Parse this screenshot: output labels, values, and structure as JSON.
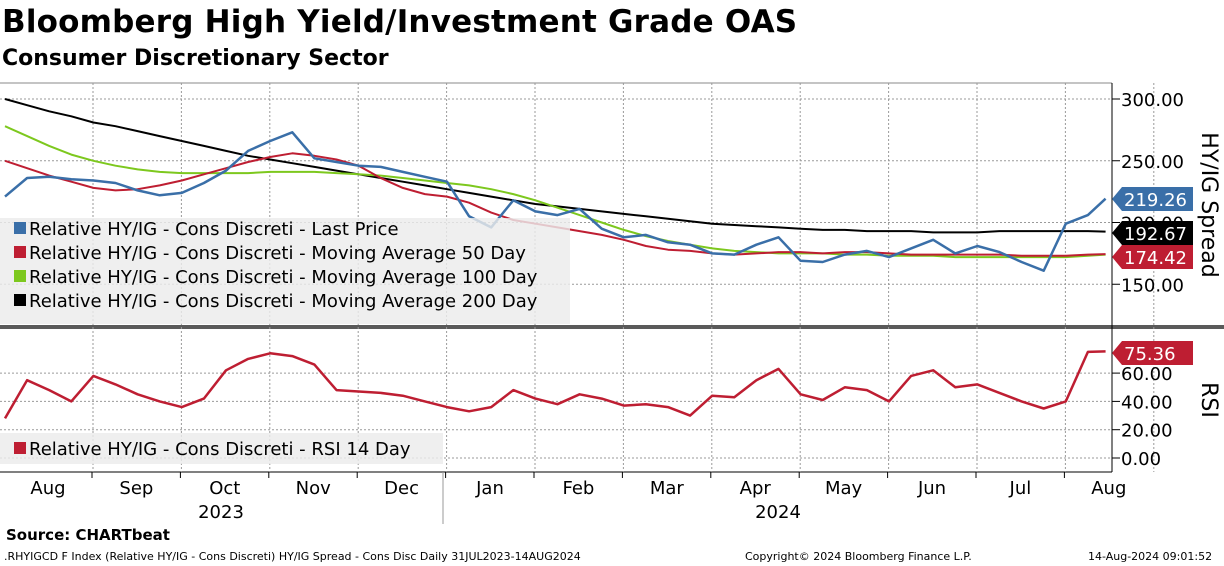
{
  "title": "Bloomberg High Yield/Investment Grade OAS",
  "subtitle": "Consumer Discretionary Sector",
  "colors": {
    "last_price": "#3a6fa8",
    "ma50": "#be1e32",
    "ma100": "#7dc81e",
    "ma200": "#000000",
    "rsi": "#be1e32",
    "divider": "#5a5a5a"
  },
  "chart_data": [
    {
      "type": "line",
      "panel": "price",
      "ylabel": "HY/IG Spread",
      "ylim": [
        120,
        315
      ],
      "yticks": [
        150,
        200,
        250,
        300
      ],
      "ytick_labels": [
        "150.00",
        "200.00",
        "250.00",
        "300.00"
      ],
      "x_months": [
        "Aug",
        "Sep",
        "Oct",
        "Nov",
        "Dec",
        "Jan",
        "Feb",
        "Mar",
        "Apr",
        "May",
        "Jun",
        "Jul",
        "Aug"
      ],
      "x_years": [
        "2023",
        "2024"
      ],
      "x": [
        0,
        0.25,
        0.5,
        0.75,
        1,
        1.25,
        1.5,
        1.75,
        2,
        2.25,
        2.5,
        2.75,
        3,
        3.25,
        3.5,
        3.75,
        4,
        4.25,
        4.5,
        4.75,
        5,
        5.25,
        5.5,
        5.75,
        6,
        6.25,
        6.5,
        6.75,
        7,
        7.25,
        7.5,
        7.75,
        8,
        8.25,
        8.5,
        8.75,
        9,
        9.25,
        9.5,
        9.75,
        10,
        10.25,
        10.5,
        10.75,
        11,
        11.25,
        11.5,
        11.75,
        12,
        12.25,
        12.45
      ],
      "series": [
        {
          "name": "Relative HY/IG - Cons Discreti - Last Price",
          "values": [
            221,
            236,
            237,
            235,
            234,
            232,
            226,
            222,
            224,
            232,
            242,
            258,
            266,
            273,
            252,
            249,
            246,
            245,
            241,
            237,
            233,
            205,
            196,
            218,
            209,
            206,
            211,
            195,
            188,
            190,
            184,
            182,
            175,
            174,
            182,
            188,
            169,
            168,
            174,
            177,
            172,
            179,
            186,
            175,
            181,
            176,
            168,
            161,
            199,
            206,
            219.26
          ]
        },
        {
          "name": "Relative HY/IG - Cons Discreti - Moving Average 50 Day",
          "values": [
            250,
            244,
            238,
            233,
            228,
            226,
            227,
            230,
            234,
            239,
            244,
            249,
            253,
            256,
            254,
            251,
            246,
            236,
            228,
            223,
            221,
            216,
            208,
            202,
            199,
            196,
            193,
            190,
            186,
            181,
            178,
            177,
            175,
            174,
            175,
            176,
            176,
            175,
            176,
            176,
            175,
            174,
            174,
            174,
            174,
            174,
            173,
            173,
            173,
            174,
            174.42
          ]
        },
        {
          "name": "Relative HY/IG - Cons Discreti - Moving Average 100 Day",
          "values": [
            278,
            270,
            262,
            255,
            250,
            246,
            243,
            241,
            240,
            240,
            240,
            240,
            241,
            241,
            241,
            240,
            239,
            238,
            236,
            234,
            232,
            230,
            227,
            223,
            218,
            212,
            206,
            200,
            194,
            189,
            185,
            182,
            179,
            177,
            176,
            175,
            175,
            175,
            174,
            174,
            173,
            173,
            173,
            172,
            172,
            172,
            172,
            172,
            172,
            173,
            174
          ]
        },
        {
          "name": "Relative HY/IG - Cons Discreti - Moving Average 200 Day",
          "values": [
            300,
            295,
            290,
            286,
            281,
            278,
            274,
            270,
            266,
            262,
            258,
            254,
            251,
            248,
            245,
            242,
            239,
            236,
            233,
            230,
            227,
            224,
            221,
            218,
            215,
            213,
            211,
            209,
            207,
            205,
            203,
            201,
            199,
            198,
            197,
            196,
            195,
            194,
            194,
            193,
            193,
            193,
            192,
            192,
            192,
            193,
            193,
            193,
            193,
            193,
            192.67
          ]
        }
      ],
      "last_values": [
        {
          "label": "219.26",
          "color": "#3a6fa8"
        },
        {
          "label": "192.67",
          "color": "#000000"
        },
        {
          "label": "174.42",
          "color": "#be1e32"
        }
      ],
      "legend": [
        {
          "label": "Relative HY/IG - Cons Discreti - Last Price",
          "color": "#3a6fa8"
        },
        {
          "label": "Relative HY/IG - Cons Discreti - Moving Average 50 Day",
          "color": "#be1e32"
        },
        {
          "label": "Relative HY/IG - Cons Discreti - Moving Average 100 Day",
          "color": "#7dc81e"
        },
        {
          "label": "Relative HY/IG - Cons Discreti - Moving Average 200 Day",
          "color": "#000000"
        }
      ],
      "legend_position": "bottom-left"
    },
    {
      "type": "line",
      "panel": "rsi",
      "ylabel": "RSI",
      "ylim": [
        -8,
        95
      ],
      "yticks": [
        0,
        20,
        40,
        60
      ],
      "ytick_labels": [
        "0.00",
        "20.00",
        "40.00",
        "60.00"
      ],
      "x": [
        0,
        0.25,
        0.5,
        0.75,
        1,
        1.25,
        1.5,
        1.75,
        2,
        2.25,
        2.5,
        2.75,
        3,
        3.25,
        3.5,
        3.75,
        4,
        4.25,
        4.5,
        4.75,
        5,
        5.25,
        5.5,
        5.75,
        6,
        6.25,
        6.5,
        6.75,
        7,
        7.25,
        7.5,
        7.75,
        8,
        8.25,
        8.5,
        8.75,
        9,
        9.25,
        9.5,
        9.75,
        10,
        10.25,
        10.5,
        10.75,
        11,
        11.25,
        11.5,
        11.75,
        12,
        12.25,
        12.45
      ],
      "series": [
        {
          "name": "Relative HY/IG - Cons Discreti - RSI 14 Day",
          "values": [
            28,
            55,
            48,
            40,
            58,
            52,
            45,
            40,
            36,
            42,
            62,
            70,
            74,
            72,
            66,
            48,
            47,
            46,
            44,
            40,
            36,
            33,
            36,
            48,
            42,
            38,
            45,
            42,
            37,
            38,
            36,
            30,
            44,
            43,
            55,
            63,
            45,
            41,
            50,
            48,
            40,
            58,
            62,
            50,
            52,
            46,
            40,
            35,
            40,
            75,
            75.36
          ]
        }
      ],
      "last_values": [
        {
          "label": "75.36",
          "color": "#be1e32"
        }
      ],
      "legend": [
        {
          "label": "Relative HY/IG - Cons Discreti - RSI 14 Day",
          "color": "#be1e32"
        }
      ]
    }
  ],
  "footer": {
    "source": "Source: CHARTbeat",
    "index": ".RHYIGCD F Index (Relative HY/IG - Cons Discreti) HY/IG Spread - Cons Disc  Daily 31JUL2023-14AUG2024",
    "copyright": "Copyright© 2024 Bloomberg Finance L.P.",
    "timestamp": "14-Aug-2024 09:01:52"
  }
}
